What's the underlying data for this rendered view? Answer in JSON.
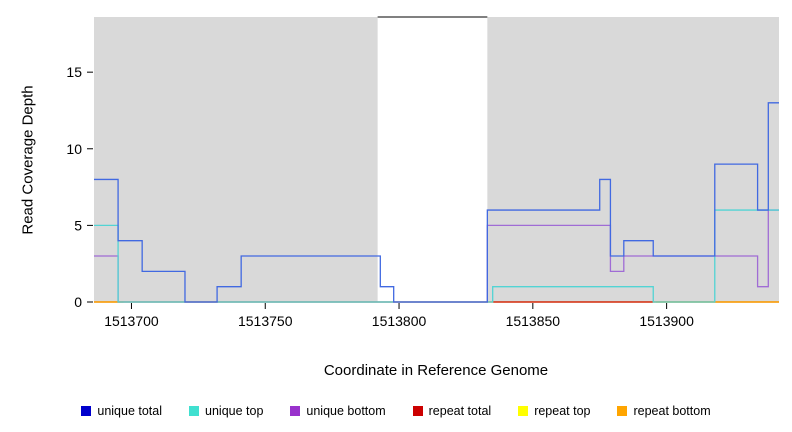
{
  "chart_data": {
    "type": "line",
    "title": "",
    "xlabel": "Coordinate in Reference Genome",
    "ylabel": "Read Coverage Depth",
    "x_range": [
      1513686,
      1513942
    ],
    "y_range": [
      0,
      18.6
    ],
    "x_ticks": [
      1513700,
      1513750,
      1513800,
      1513850,
      1513900
    ],
    "y_ticks": [
      0,
      5,
      10,
      15
    ],
    "background_color": "#d9d9d9",
    "uncovered_regions": [
      [
        1513792,
        1513833
      ]
    ],
    "legend_position": "bottom",
    "grid": false,
    "series": [
      {
        "name": "repeat top",
        "color": "#ffff00",
        "segments": [
          {
            "steps": [
              [
                1513686,
                0
              ]
            ],
            "x_end": 1513942
          }
        ]
      },
      {
        "name": "repeat total",
        "color": "#cc0000",
        "segments": [
          {
            "steps": [
              [
                1513686,
                0
              ]
            ],
            "x_end": 1513942
          }
        ]
      },
      {
        "name": "repeat bottom",
        "color": "#ffa500",
        "segments": [
          {
            "steps": [
              [
                1513686,
                0
              ]
            ],
            "x_end": 1513697
          },
          {
            "steps": [
              [
                1513896,
                0
              ]
            ],
            "x_end": 1513942
          }
        ]
      },
      {
        "name": "unique bottom",
        "color": "#a06cd5",
        "segments": [
          {
            "steps": [
              [
                1513686,
                3
              ],
              [
                1513695,
                0
              ],
              [
                1513833,
                5
              ],
              [
                1513879,
                2
              ],
              [
                1513884,
                3
              ],
              [
                1513934,
                1
              ],
              [
                1513938,
                6
              ]
            ],
            "x_end": 1513942
          }
        ]
      },
      {
        "name": "unique top",
        "color": "#52d4d4",
        "segments": [
          {
            "steps": [
              [
                1513686,
                5
              ],
              [
                1513695,
                0
              ],
              [
                1513835,
                1
              ],
              [
                1513895,
                0
              ],
              [
                1513918,
                6
              ]
            ],
            "x_end": 1513942
          }
        ]
      },
      {
        "name": "unique total",
        "color": "#4169e1",
        "segments": [
          {
            "steps": [
              [
                1513686,
                8
              ],
              [
                1513695,
                4
              ],
              [
                1513704,
                2
              ],
              [
                1513720,
                0
              ],
              [
                1513732,
                1
              ],
              [
                1513741,
                3
              ],
              [
                1513793,
                1
              ],
              [
                1513798,
                0
              ],
              [
                1513833,
                6
              ],
              [
                1513875,
                8
              ],
              [
                1513879,
                3
              ],
              [
                1513884,
                4
              ],
              [
                1513895,
                3
              ],
              [
                1513918,
                9
              ],
              [
                1513934,
                6
              ],
              [
                1513938,
                13
              ]
            ],
            "x_end": 1513942
          }
        ]
      }
    ],
    "legend": [
      {
        "label": "unique total",
        "color": "#0000cd"
      },
      {
        "label": "unique top",
        "color": "#40e0d0"
      },
      {
        "label": "unique bottom",
        "color": "#9932cc"
      },
      {
        "label": "repeat total",
        "color": "#cc0000"
      },
      {
        "label": "repeat top",
        "color": "#ffff00"
      },
      {
        "label": "repeat bottom",
        "color": "#ffa500"
      }
    ]
  }
}
